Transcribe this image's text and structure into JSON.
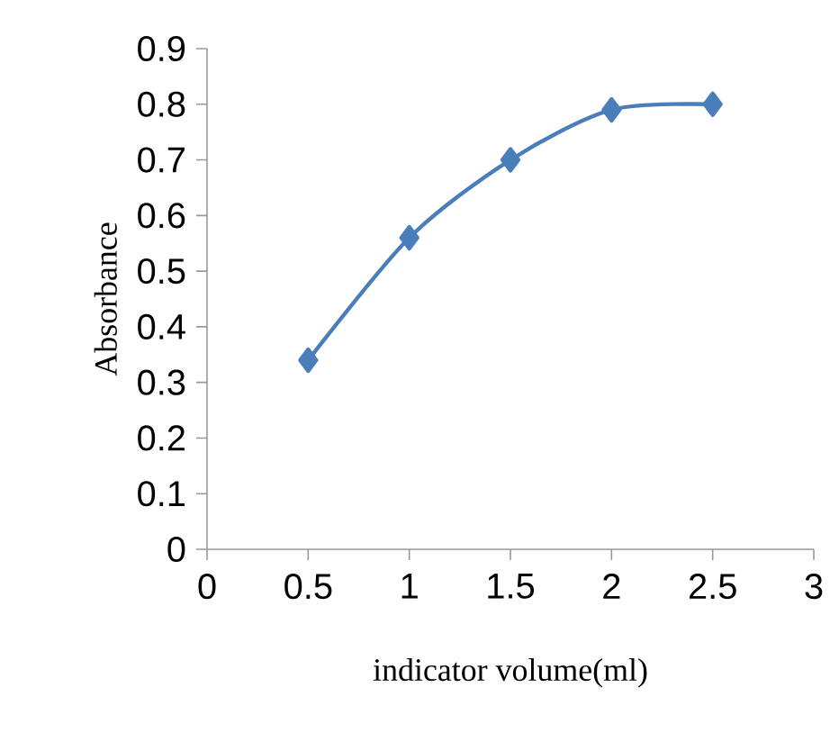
{
  "chart_data": {
    "type": "line",
    "xlabel": "indicator volume(ml)",
    "ylabel": "Absorbance",
    "x": [
      0.5,
      1,
      1.5,
      2,
      2.5
    ],
    "series": [
      {
        "color": "#4a7ebb",
        "values": [
          0.34,
          0.56,
          0.7,
          0.79,
          0.8
        ]
      }
    ],
    "xlim": [
      0,
      3
    ],
    "xticks": [
      0,
      0.5,
      1,
      1.5,
      2,
      2.5,
      3
    ],
    "ylim": [
      0,
      0.9
    ],
    "yticks": [
      0,
      0.1,
      0.2,
      0.3,
      0.4,
      0.5,
      0.6,
      0.7,
      0.8,
      0.9
    ],
    "grid": false,
    "marker": "diamond",
    "line_style": "solid"
  }
}
